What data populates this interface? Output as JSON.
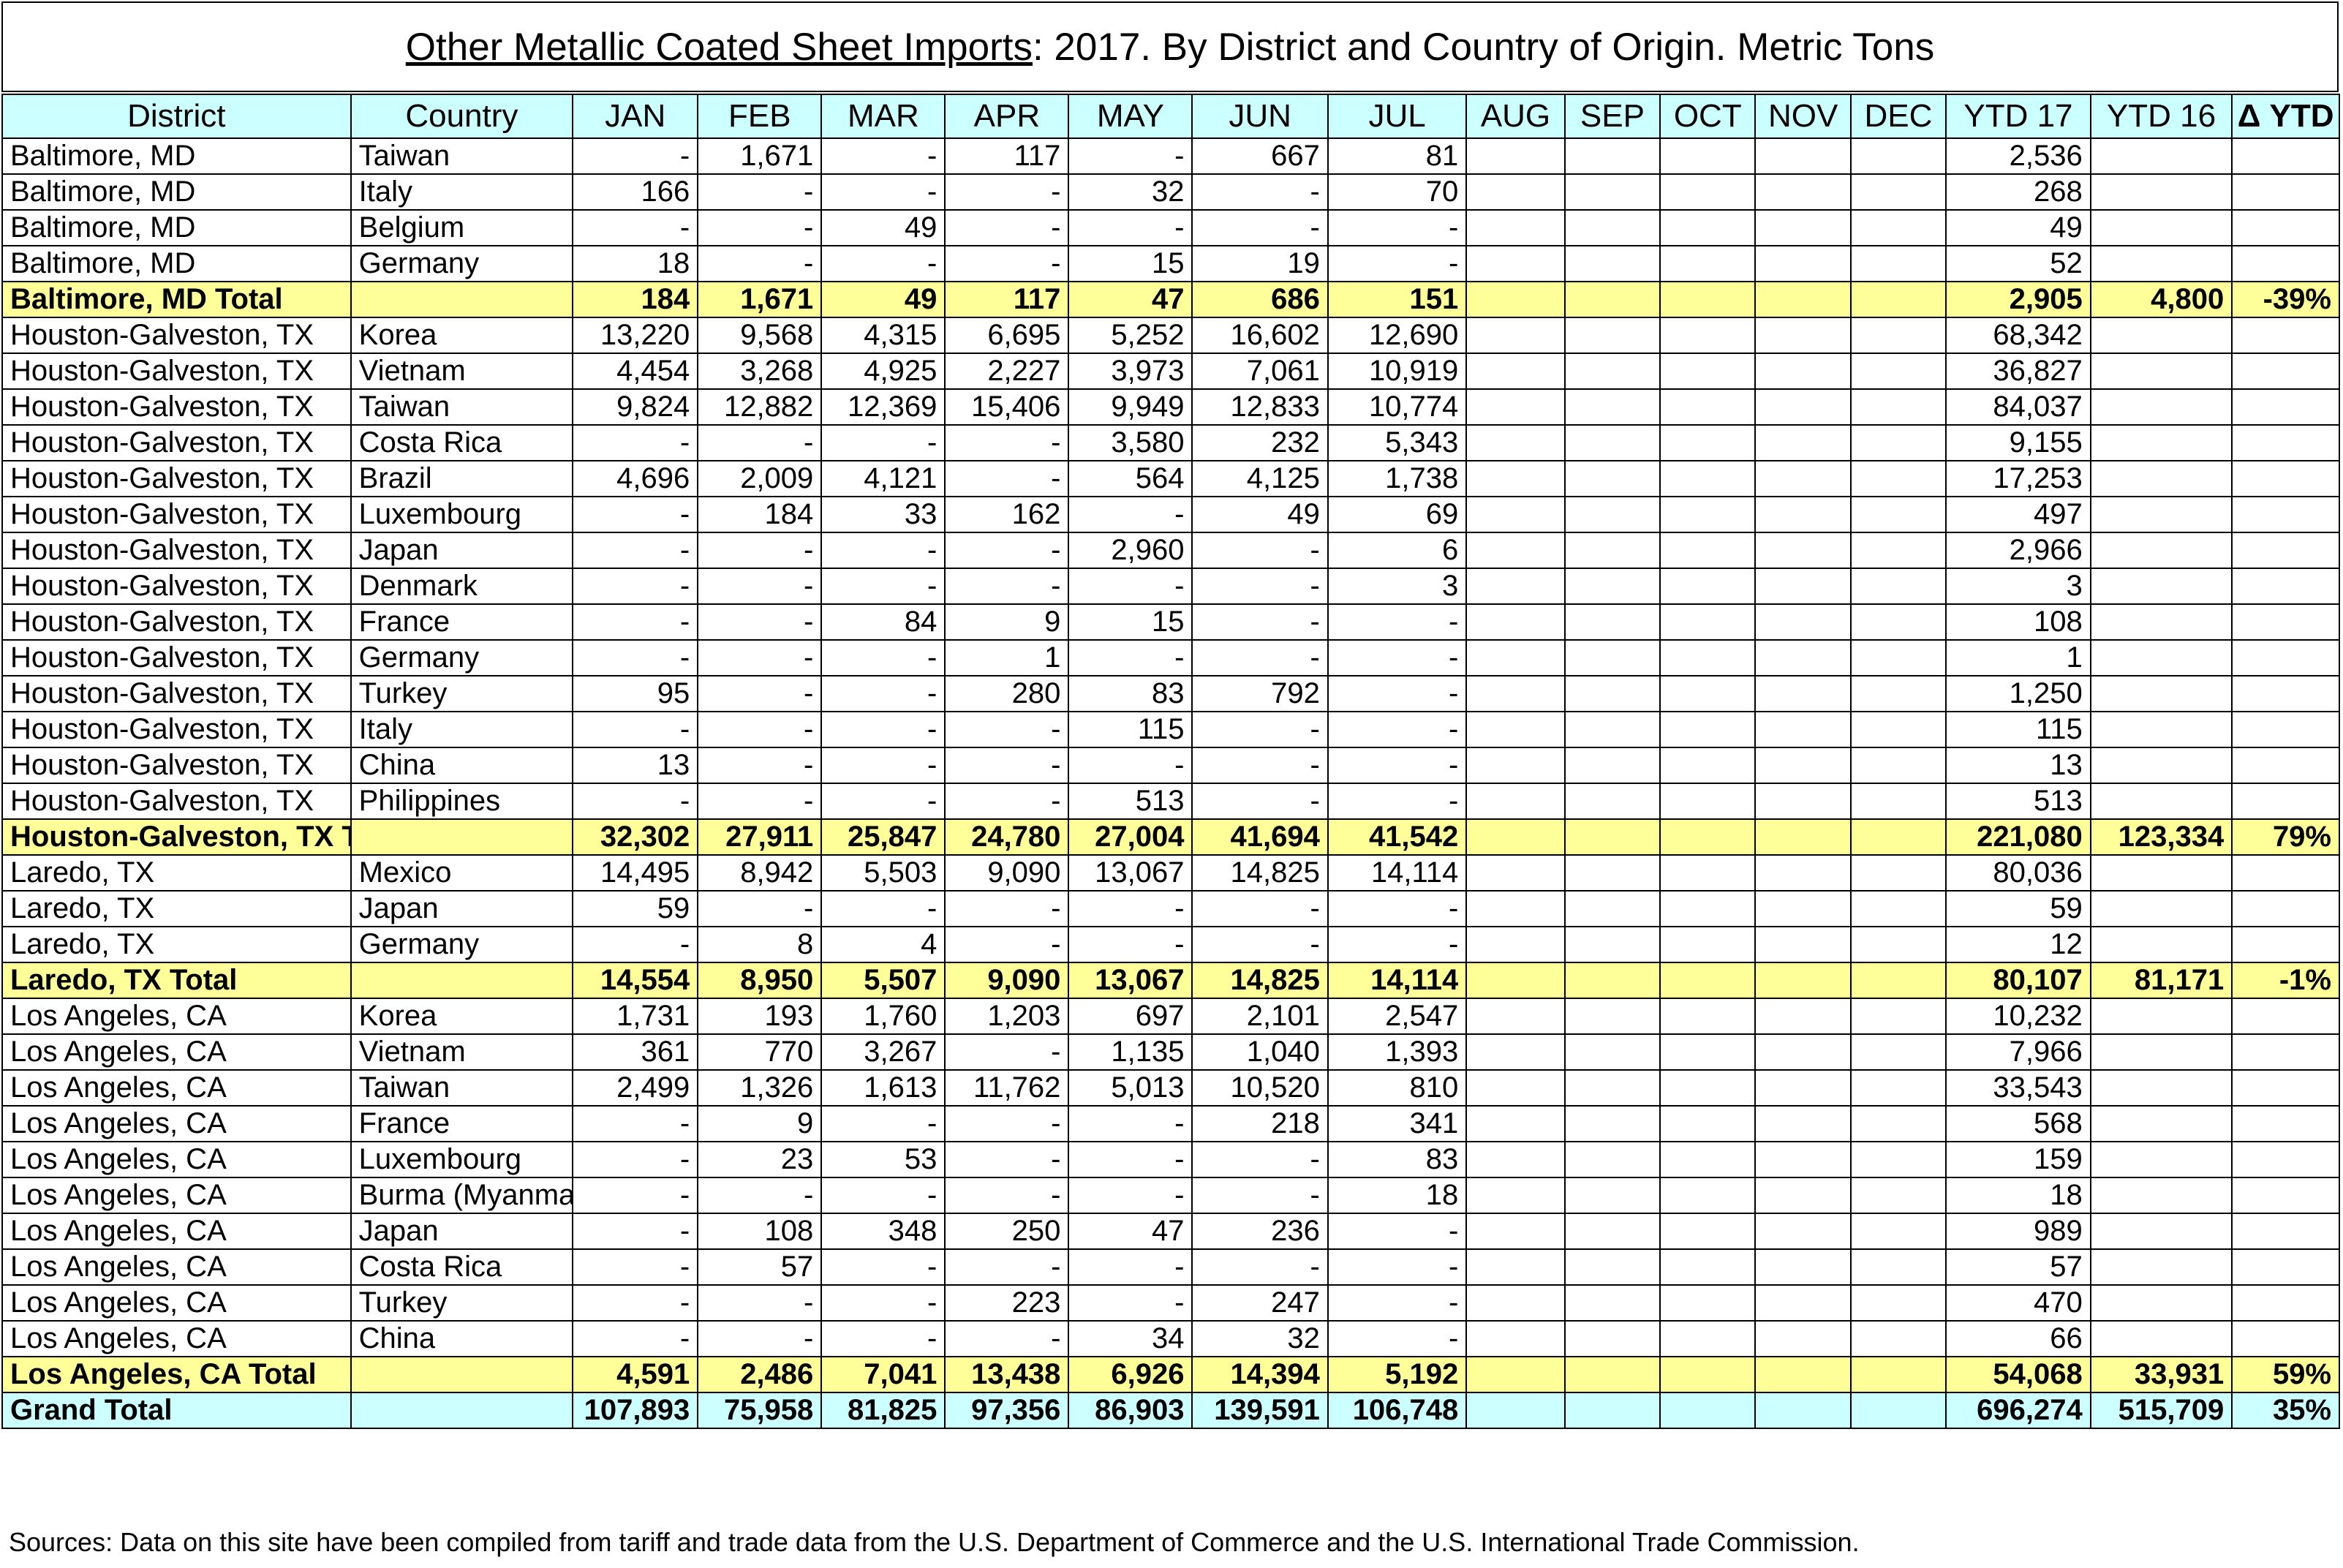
{
  "title": {
    "underlined": "Other Metallic Coated Sheet Imports",
    "rest": ": 2017. By District and Country of Origin. Metric Tons"
  },
  "columns": [
    "District",
    "Country",
    "JAN",
    "FEB",
    "MAR",
    "APR",
    "MAY",
    "JUN",
    "JUL",
    "AUG",
    "SEP",
    "OCT",
    "NOV",
    "DEC",
    "YTD 17",
    "YTD 16",
    "Δ YTD"
  ],
  "rows": [
    {
      "type": "data",
      "cells": [
        "Baltimore, MD",
        "Taiwan",
        "-",
        "1,671",
        "-",
        "117",
        "-",
        "667",
        "81",
        "",
        "",
        "",
        "",
        "",
        "2,536",
        "",
        ""
      ]
    },
    {
      "type": "data",
      "cells": [
        "Baltimore, MD",
        "Italy",
        "166",
        "-",
        "-",
        "-",
        "32",
        "-",
        "70",
        "",
        "",
        "",
        "",
        "",
        "268",
        "",
        ""
      ]
    },
    {
      "type": "data",
      "cells": [
        "Baltimore, MD",
        "Belgium",
        "-",
        "-",
        "49",
        "-",
        "-",
        "-",
        "-",
        "",
        "",
        "",
        "",
        "",
        "49",
        "",
        ""
      ]
    },
    {
      "type": "data",
      "cells": [
        "Baltimore, MD",
        "Germany",
        "18",
        "-",
        "-",
        "-",
        "15",
        "19",
        "-",
        "",
        "",
        "",
        "",
        "",
        "52",
        "",
        ""
      ]
    },
    {
      "type": "total",
      "cells": [
        "Baltimore, MD Total",
        "",
        "184",
        "1,671",
        "49",
        "117",
        "47",
        "686",
        "151",
        "",
        "",
        "",
        "",
        "",
        "2,905",
        "4,800",
        "-39%"
      ]
    },
    {
      "type": "data",
      "cells": [
        "Houston-Galveston, TX",
        "Korea",
        "13,220",
        "9,568",
        "4,315",
        "6,695",
        "5,252",
        "16,602",
        "12,690",
        "",
        "",
        "",
        "",
        "",
        "68,342",
        "",
        ""
      ]
    },
    {
      "type": "data",
      "cells": [
        "Houston-Galveston, TX",
        "Vietnam",
        "4,454",
        "3,268",
        "4,925",
        "2,227",
        "3,973",
        "7,061",
        "10,919",
        "",
        "",
        "",
        "",
        "",
        "36,827",
        "",
        ""
      ]
    },
    {
      "type": "data",
      "cells": [
        "Houston-Galveston, TX",
        "Taiwan",
        "9,824",
        "12,882",
        "12,369",
        "15,406",
        "9,949",
        "12,833",
        "10,774",
        "",
        "",
        "",
        "",
        "",
        "84,037",
        "",
        ""
      ]
    },
    {
      "type": "data",
      "cells": [
        "Houston-Galveston, TX",
        "Costa Rica",
        "-",
        "-",
        "-",
        "-",
        "3,580",
        "232",
        "5,343",
        "",
        "",
        "",
        "",
        "",
        "9,155",
        "",
        ""
      ]
    },
    {
      "type": "data",
      "cells": [
        "Houston-Galveston, TX",
        "Brazil",
        "4,696",
        "2,009",
        "4,121",
        "-",
        "564",
        "4,125",
        "1,738",
        "",
        "",
        "",
        "",
        "",
        "17,253",
        "",
        ""
      ]
    },
    {
      "type": "data",
      "cells": [
        "Houston-Galveston, TX",
        "Luxembourg",
        "-",
        "184",
        "33",
        "162",
        "-",
        "49",
        "69",
        "",
        "",
        "",
        "",
        "",
        "497",
        "",
        ""
      ]
    },
    {
      "type": "data",
      "cells": [
        "Houston-Galveston, TX",
        "Japan",
        "-",
        "-",
        "-",
        "-",
        "2,960",
        "-",
        "6",
        "",
        "",
        "",
        "",
        "",
        "2,966",
        "",
        ""
      ]
    },
    {
      "type": "data",
      "cells": [
        "Houston-Galveston, TX",
        "Denmark",
        "-",
        "-",
        "-",
        "-",
        "-",
        "-",
        "3",
        "",
        "",
        "",
        "",
        "",
        "3",
        "",
        ""
      ]
    },
    {
      "type": "data",
      "cells": [
        "Houston-Galveston, TX",
        "France",
        "-",
        "-",
        "84",
        "9",
        "15",
        "-",
        "-",
        "",
        "",
        "",
        "",
        "",
        "108",
        "",
        ""
      ]
    },
    {
      "type": "data",
      "cells": [
        "Houston-Galveston, TX",
        "Germany",
        "-",
        "-",
        "-",
        "1",
        "-",
        "-",
        "-",
        "",
        "",
        "",
        "",
        "",
        "1",
        "",
        ""
      ]
    },
    {
      "type": "data",
      "cells": [
        "Houston-Galveston, TX",
        "Turkey",
        "95",
        "-",
        "-",
        "280",
        "83",
        "792",
        "-",
        "",
        "",
        "",
        "",
        "",
        "1,250",
        "",
        ""
      ]
    },
    {
      "type": "data",
      "cells": [
        "Houston-Galveston, TX",
        "Italy",
        "-",
        "-",
        "-",
        "-",
        "115",
        "-",
        "-",
        "",
        "",
        "",
        "",
        "",
        "115",
        "",
        ""
      ]
    },
    {
      "type": "data",
      "cells": [
        "Houston-Galveston, TX",
        "China",
        "13",
        "-",
        "-",
        "-",
        "-",
        "-",
        "-",
        "",
        "",
        "",
        "",
        "",
        "13",
        "",
        ""
      ]
    },
    {
      "type": "data",
      "cells": [
        "Houston-Galveston, TX",
        "Philippines",
        "-",
        "-",
        "-",
        "-",
        "513",
        "-",
        "-",
        "",
        "",
        "",
        "",
        "",
        "513",
        "",
        ""
      ]
    },
    {
      "type": "total",
      "cells": [
        "Houston-Galveston, TX Total",
        "",
        "32,302",
        "27,911",
        "25,847",
        "24,780",
        "27,004",
        "41,694",
        "41,542",
        "",
        "",
        "",
        "",
        "",
        "221,080",
        "123,334",
        "79%"
      ]
    },
    {
      "type": "data",
      "cells": [
        "Laredo, TX",
        "Mexico",
        "14,495",
        "8,942",
        "5,503",
        "9,090",
        "13,067",
        "14,825",
        "14,114",
        "",
        "",
        "",
        "",
        "",
        "80,036",
        "",
        ""
      ]
    },
    {
      "type": "data",
      "cells": [
        "Laredo, TX",
        "Japan",
        "59",
        "-",
        "-",
        "-",
        "-",
        "-",
        "-",
        "",
        "",
        "",
        "",
        "",
        "59",
        "",
        ""
      ]
    },
    {
      "type": "data",
      "cells": [
        "Laredo, TX",
        "Germany",
        "-",
        "8",
        "4",
        "-",
        "-",
        "-",
        "-",
        "",
        "",
        "",
        "",
        "",
        "12",
        "",
        ""
      ]
    },
    {
      "type": "total",
      "cells": [
        "Laredo, TX Total",
        "",
        "14,554",
        "8,950",
        "5,507",
        "9,090",
        "13,067",
        "14,825",
        "14,114",
        "",
        "",
        "",
        "",
        "",
        "80,107",
        "81,171",
        "-1%"
      ]
    },
    {
      "type": "data",
      "cells": [
        "Los Angeles, CA",
        "Korea",
        "1,731",
        "193",
        "1,760",
        "1,203",
        "697",
        "2,101",
        "2,547",
        "",
        "",
        "",
        "",
        "",
        "10,232",
        "",
        ""
      ]
    },
    {
      "type": "data",
      "cells": [
        "Los Angeles, CA",
        "Vietnam",
        "361",
        "770",
        "3,267",
        "-",
        "1,135",
        "1,040",
        "1,393",
        "",
        "",
        "",
        "",
        "",
        "7,966",
        "",
        ""
      ]
    },
    {
      "type": "data",
      "cells": [
        "Los Angeles, CA",
        "Taiwan",
        "2,499",
        "1,326",
        "1,613",
        "11,762",
        "5,013",
        "10,520",
        "810",
        "",
        "",
        "",
        "",
        "",
        "33,543",
        "",
        ""
      ]
    },
    {
      "type": "data",
      "cells": [
        "Los Angeles, CA",
        "France",
        "-",
        "9",
        "-",
        "-",
        "-",
        "218",
        "341",
        "",
        "",
        "",
        "",
        "",
        "568",
        "",
        ""
      ]
    },
    {
      "type": "data",
      "cells": [
        "Los Angeles, CA",
        "Luxembourg",
        "-",
        "23",
        "53",
        "-",
        "-",
        "-",
        "83",
        "",
        "",
        "",
        "",
        "",
        "159",
        "",
        ""
      ]
    },
    {
      "type": "data",
      "cells": [
        "Los Angeles, CA",
        "Burma (Myanma",
        "-",
        "-",
        "-",
        "-",
        "-",
        "-",
        "18",
        "",
        "",
        "",
        "",
        "",
        "18",
        "",
        ""
      ]
    },
    {
      "type": "data",
      "cells": [
        "Los Angeles, CA",
        "Japan",
        "-",
        "108",
        "348",
        "250",
        "47",
        "236",
        "-",
        "",
        "",
        "",
        "",
        "",
        "989",
        "",
        ""
      ]
    },
    {
      "type": "data",
      "cells": [
        "Los Angeles, CA",
        "Costa Rica",
        "-",
        "57",
        "-",
        "-",
        "-",
        "-",
        "-",
        "",
        "",
        "",
        "",
        "",
        "57",
        "",
        ""
      ]
    },
    {
      "type": "data",
      "cells": [
        "Los Angeles, CA",
        "Turkey",
        "-",
        "-",
        "-",
        "223",
        "-",
        "247",
        "-",
        "",
        "",
        "",
        "",
        "",
        "470",
        "",
        ""
      ]
    },
    {
      "type": "data",
      "cells": [
        "Los Angeles, CA",
        "China",
        "-",
        "-",
        "-",
        "-",
        "34",
        "32",
        "-",
        "",
        "",
        "",
        "",
        "",
        "66",
        "",
        ""
      ]
    },
    {
      "type": "total",
      "cells": [
        "Los Angeles, CA Total",
        "",
        "4,591",
        "2,486",
        "7,041",
        "13,438",
        "6,926",
        "14,394",
        "5,192",
        "",
        "",
        "",
        "",
        "",
        "54,068",
        "33,931",
        "59%"
      ]
    },
    {
      "type": "grand",
      "cells": [
        "Grand Total",
        "",
        "107,893",
        "75,958",
        "81,825",
        "97,356",
        "86,903",
        "139,591",
        "106,748",
        "",
        "",
        "",
        "",
        "",
        "696,274",
        "515,709",
        "35%"
      ]
    }
  ],
  "source": "Sources: Data on this site have been compiled from tariff and trade data from the U.S. Department of Commerce and the U.S. International Trade Commission.",
  "colors": {
    "header_bg": "#ccffff",
    "total_bg": "#ffff99",
    "grand_bg": "#ccffff"
  }
}
